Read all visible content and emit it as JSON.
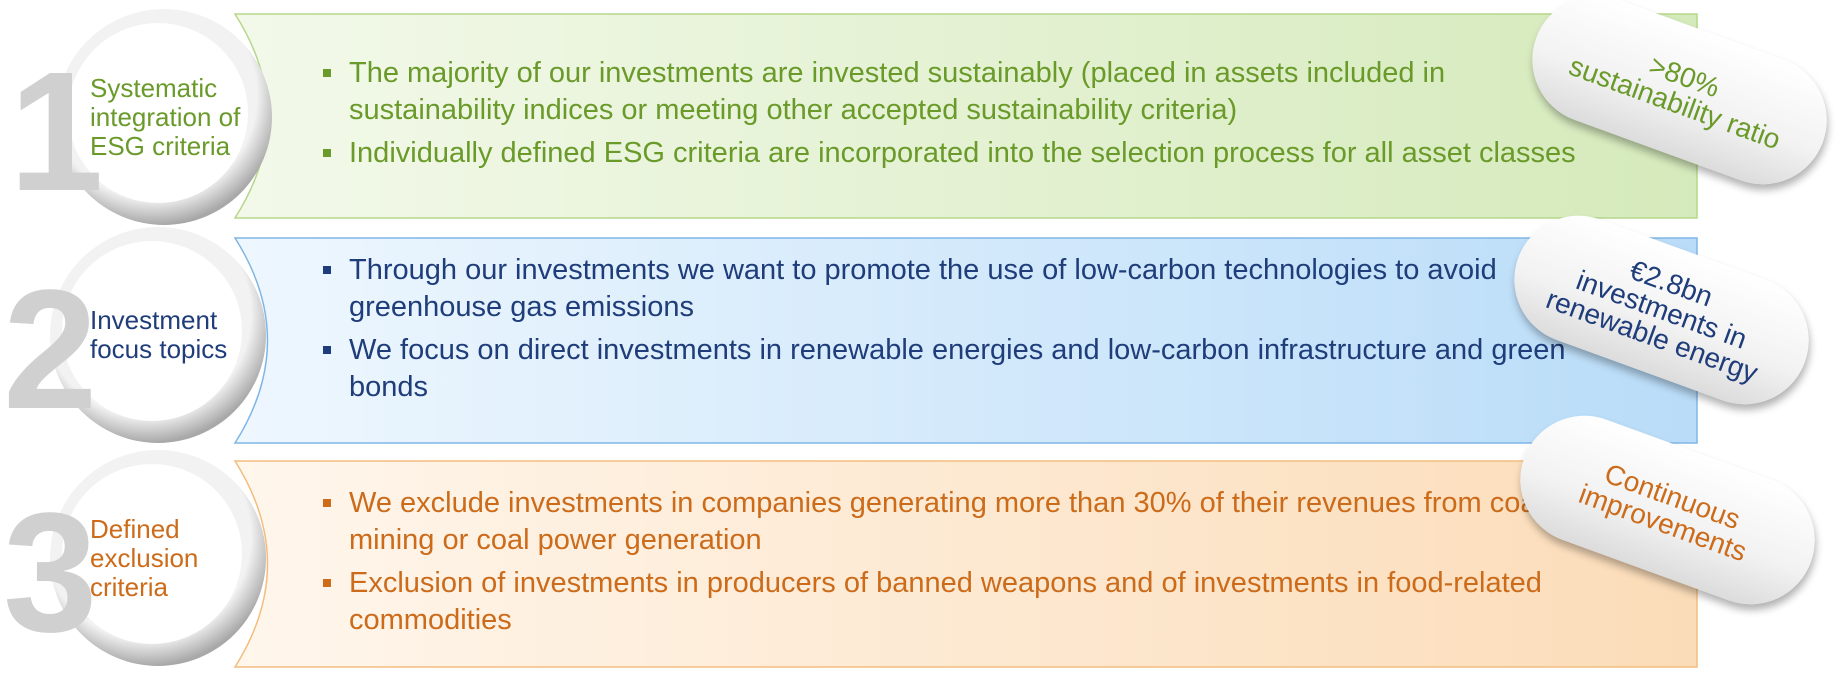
{
  "rows": [
    {
      "number": "1",
      "label": "Systematic integration of ESG criteria",
      "bullets": [
        "The majority of our investments are invested sustainably (placed in assets included in sustainability indices or meeting other accepted sustainability criteria)",
        "Individually defined ESG criteria are incorporated into the selection process for all asset classes"
      ],
      "badge": [
        ">80%",
        "sustainability ratio"
      ]
    },
    {
      "number": "2",
      "label": "Investment focus topics",
      "bullets": [
        "Through our investments we want to promote the use of low-carbon technologies to avoid greenhouse gas emissions",
        "We focus on direct investments in renewable energies and low-carbon infrastructure and green bonds"
      ],
      "badge": [
        "€2.8bn",
        "investments in",
        "renewable energy"
      ]
    },
    {
      "number": "3",
      "label": "Defined exclusion criteria",
      "bullets": [
        "We exclude investments in companies generating more than 30% of their revenues from coal mining or coal power generation",
        "Exclusion of investments in producers of banned weapons and of investments in food-related commodities"
      ],
      "badge": [
        "Continuous",
        "improvements"
      ]
    }
  ]
}
